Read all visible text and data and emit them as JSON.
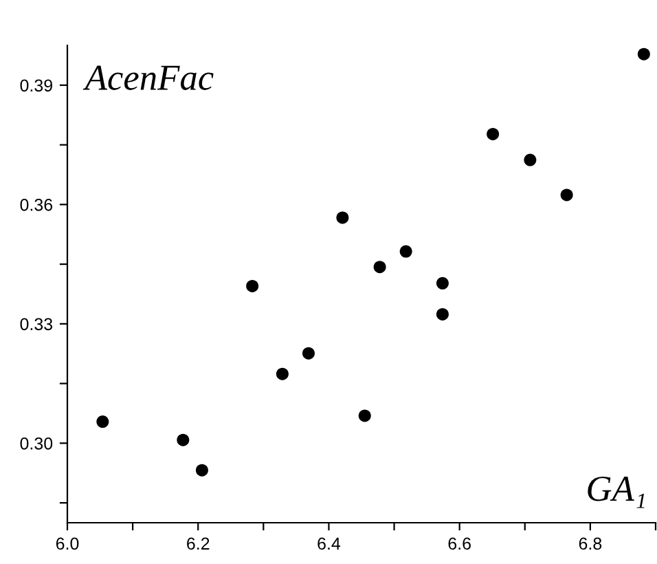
{
  "chart_data": {
    "type": "scatter",
    "xlabel": "GA₁",
    "ylabel": "AcenFac",
    "x": [
      6.054,
      6.177,
      6.206,
      6.283,
      6.329,
      6.369,
      6.421,
      6.455,
      6.478,
      6.518,
      6.574,
      6.574,
      6.651,
      6.708,
      6.764,
      6.882
    ],
    "series": [
      {
        "color": "#000000",
        "values": [
          0.3054,
          0.3008,
          0.2932,
          0.3395,
          0.3174,
          0.3226,
          0.3567,
          0.3069,
          0.3443,
          0.3482,
          0.3402,
          0.3324,
          0.3777,
          0.3712,
          0.3624,
          0.3978
        ]
      }
    ],
    "marker": "circle",
    "grid": false,
    "legend": false,
    "xlim": [
      6.0,
      6.9
    ],
    "ylim": [
      0.28,
      0.4
    ],
    "xticks": [
      {
        "value": 6.0,
        "label": "6.0"
      },
      {
        "value": 6.1,
        "label": null
      },
      {
        "value": 6.2,
        "label": "6.2"
      },
      {
        "value": 6.3,
        "label": null
      },
      {
        "value": 6.4,
        "label": "6.4"
      },
      {
        "value": 6.5,
        "label": null
      },
      {
        "value": 6.6,
        "label": "6.6"
      },
      {
        "value": 6.7,
        "label": null
      },
      {
        "value": 6.8,
        "label": "6.8"
      },
      {
        "value": 6.9,
        "label": null
      }
    ],
    "yticks": [
      {
        "value": 0.285,
        "label": null
      },
      {
        "value": 0.3,
        "label": "0.30"
      },
      {
        "value": 0.315,
        "label": null
      },
      {
        "value": 0.33,
        "label": "0.33"
      },
      {
        "value": 0.345,
        "label": null
      },
      {
        "value": 0.36,
        "label": "0.36"
      },
      {
        "value": 0.375,
        "label": null
      },
      {
        "value": 0.39,
        "label": "0.39"
      }
    ]
  }
}
